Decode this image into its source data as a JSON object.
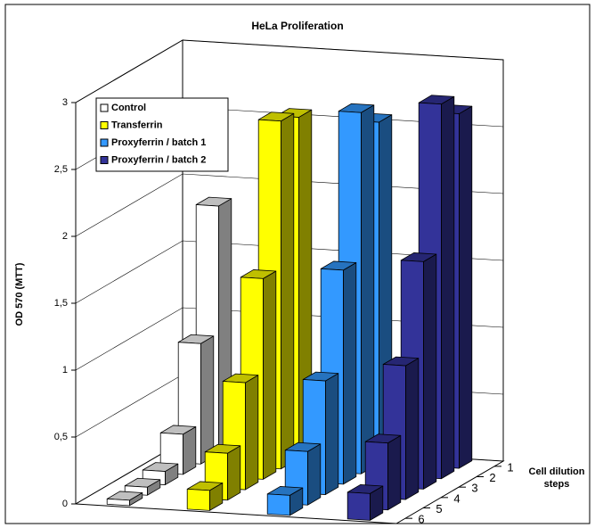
{
  "chart_data": {
    "type": "bar3d",
    "title": "HeLa Proliferation",
    "ylabel": "OD 570 (MTT)",
    "zlabel": "Cell dilution steps",
    "categories": [
      1,
      2,
      3,
      4,
      5,
      6
    ],
    "series": [
      {
        "name": "Control",
        "color": "#ffffff",
        "values": [
          1.85,
          0.9,
          0.3,
          0.1,
          0.06,
          0.04
        ]
      },
      {
        "name": "Transferrin",
        "color": "#ffff00",
        "values": [
          2.55,
          2.6,
          1.5,
          0.8,
          0.35,
          0.15
        ]
      },
      {
        "name": "Proxyferrin / batch 1",
        "color": "#3399ff",
        "values": [
          2.55,
          2.7,
          1.6,
          0.85,
          0.4,
          0.15
        ]
      },
      {
        "name": "Proxyferrin / batch 2",
        "color": "#333399",
        "values": [
          2.65,
          2.8,
          1.7,
          1.0,
          0.5,
          0.2
        ]
      }
    ],
    "ylim": [
      0,
      3
    ],
    "yticks": [
      0,
      {
        "value": 0.5,
        "label": "0,5"
      },
      1,
      {
        "value": 1.5,
        "label": "1,5"
      },
      2,
      {
        "value": 2.5,
        "label": "2,5"
      },
      3
    ],
    "grid": true,
    "legend": "upper left"
  }
}
